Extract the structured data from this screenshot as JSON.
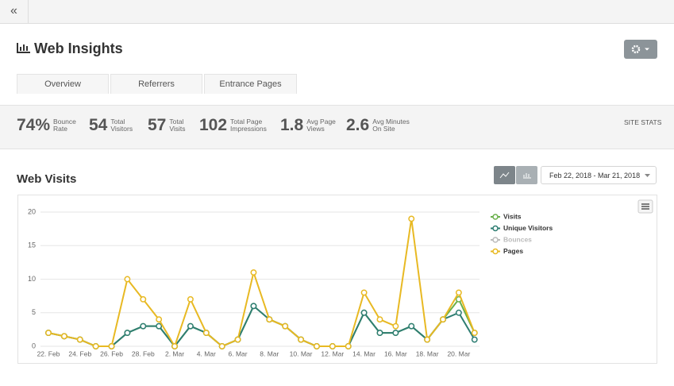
{
  "header": {
    "title": "Web Insights"
  },
  "tabs": [
    "Overview",
    "Referrers",
    "Entrance Pages"
  ],
  "stats": [
    {
      "value": "74%",
      "label": [
        "Bounce",
        "Rate"
      ]
    },
    {
      "value": "54",
      "label": [
        "Total",
        "Visitors"
      ]
    },
    {
      "value": "57",
      "label": [
        "Total",
        "Visits"
      ]
    },
    {
      "value": "102",
      "label": [
        "Total Page",
        "Impressions"
      ]
    },
    {
      "value": "1.8",
      "label": [
        "Avg Page",
        "Views"
      ]
    },
    {
      "value": "2.6",
      "label": [
        "Avg Minutes",
        "On Site"
      ]
    }
  ],
  "stats_title": "SITE STATS",
  "section_title": "Web Visits",
  "date_range": "Feb 22, 2018 - Mar 21, 2018",
  "chart_data": {
    "type": "line",
    "categories": [
      "22. Feb",
      null,
      "24. Feb",
      null,
      "26. Feb",
      null,
      "28. Feb",
      null,
      "2. Mar",
      null,
      "4. Mar",
      null,
      "6. Mar",
      null,
      "8. Mar",
      null,
      "10. Mar",
      null,
      "12. Mar",
      null,
      "14. Mar",
      null,
      "16. Mar",
      null,
      "18. Mar",
      null,
      "20. Mar",
      null
    ],
    "series": [
      {
        "name": "Visits",
        "color": "#6ab04c",
        "values": [
          2,
          1.5,
          1,
          0,
          0,
          2,
          3,
          3,
          0,
          3,
          2,
          0,
          1,
          6,
          4,
          3,
          1,
          0,
          0,
          0,
          5,
          2,
          2,
          3,
          1,
          4,
          7,
          2
        ]
      },
      {
        "name": "Unique Visitors",
        "color": "#2e7d72",
        "values": [
          2,
          1.5,
          1,
          0,
          0,
          2,
          3,
          3,
          0,
          3,
          2,
          0,
          1,
          6,
          4,
          3,
          1,
          0,
          0,
          0,
          5,
          2,
          2,
          3,
          1,
          4,
          5,
          1
        ]
      },
      {
        "name": "Pages",
        "color": "#e8b923",
        "values": [
          2,
          1.5,
          1,
          0,
          0,
          10,
          7,
          4,
          0,
          7,
          2,
          0,
          1,
          11,
          4,
          3,
          1,
          0,
          0,
          0,
          8,
          4,
          3,
          19,
          1,
          4,
          8,
          2
        ]
      }
    ],
    "hidden_series": [
      {
        "name": "Bounces",
        "color": "#bbbbbb"
      }
    ],
    "ylim": [
      0,
      20
    ],
    "yticks": [
      0,
      5,
      10,
      15,
      20
    ],
    "grid": true
  }
}
